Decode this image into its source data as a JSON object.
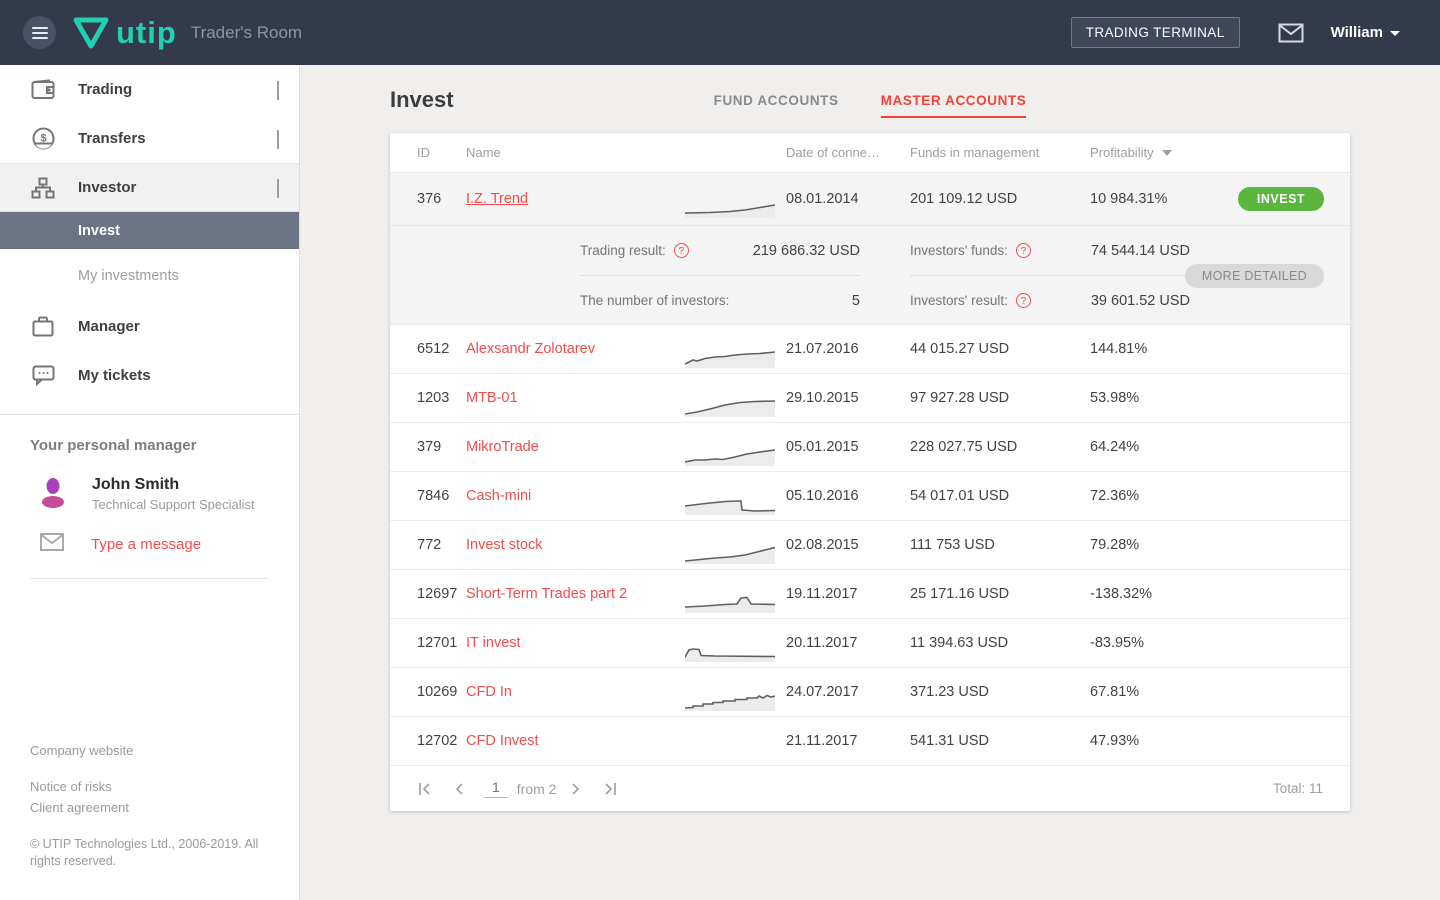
{
  "colors": {
    "brand_teal": "#21d0b2",
    "topbar_bg": "#323a4c",
    "accent_red": "#f44b4b",
    "tab_active_red": "#f44336",
    "invest_green": "#5cb53c",
    "selected_slate": "#6b7385"
  },
  "topbar": {
    "brand": "utip",
    "subtitle": "Trader's Room",
    "terminal_button": "TRADING TERMINAL",
    "username": "William"
  },
  "sidebar": {
    "items": [
      {
        "key": "trading",
        "label": "Trading",
        "chevron": "down"
      },
      {
        "key": "transfers",
        "label": "Transfers",
        "chevron": "down"
      },
      {
        "key": "investor",
        "label": "Investor",
        "chevron": "up"
      }
    ],
    "sub_items": [
      {
        "key": "invest",
        "label": "Invest",
        "selected": true
      },
      {
        "key": "my-investments",
        "label": "My investments",
        "selected": false
      }
    ],
    "items_bottom": [
      {
        "key": "manager",
        "label": "Manager"
      },
      {
        "key": "my-tickets",
        "label": "My tickets"
      }
    ],
    "personal_manager": {
      "heading": "Your personal manager",
      "name": "John Smith",
      "role": "Technical Support Specialist",
      "message_link": "Type a message"
    },
    "footer_links": [
      "Company website",
      "Notice of risks",
      "Client agreement"
    ],
    "copyright": "© UTIP Technologies Ltd., 2006-2019. All rights reserved."
  },
  "main": {
    "title": "Invest",
    "tabs": [
      {
        "label": "FUND ACCOUNTS",
        "active": false
      },
      {
        "label": "MASTER ACCOUNTS",
        "active": true
      }
    ],
    "table": {
      "columns": {
        "id": "ID",
        "name": "Name",
        "date": "Date of conne…",
        "funds": "Funds in management",
        "profit": "Profitability"
      },
      "invest_button": "INVEST",
      "more_detailed_button": "MORE DETAILED",
      "rows": [
        {
          "id": "376",
          "name": "I.Z. Trend",
          "date": "08.01.2014",
          "funds": "201 109.12 USD",
          "profit": "10 984.31%",
          "expanded": true,
          "underline": true,
          "spark": [
            [
              0,
              21
            ],
            [
              25,
              20.5
            ],
            [
              45,
              19.5
            ],
            [
              60,
              18
            ],
            [
              75,
              15.5
            ],
            [
              90,
              13
            ]
          ]
        },
        {
          "id": "6512",
          "name": "Alexsandr Zolotarev",
          "date": "21.07.2016",
          "funds": "44 015.27 USD",
          "profit": "144.81%",
          "spark": [
            [
              0,
              22
            ],
            [
              8,
              18
            ],
            [
              12,
              19
            ],
            [
              20,
              16.5
            ],
            [
              30,
              15
            ],
            [
              40,
              14.5
            ],
            [
              50,
              13
            ],
            [
              62,
              12
            ],
            [
              75,
              11.5
            ],
            [
              90,
              10
            ]
          ]
        },
        {
          "id": "1203",
          "name": "MTB-01",
          "date": "29.10.2015",
          "funds": "97 927.28 USD",
          "profit": "53.98%",
          "spark": [
            [
              0,
              23
            ],
            [
              12,
              21
            ],
            [
              25,
              18
            ],
            [
              40,
              14
            ],
            [
              55,
              11.5
            ],
            [
              70,
              10.5
            ],
            [
              90,
              10
            ]
          ]
        },
        {
          "id": "379",
          "name": "MikroTrade",
          "date": "05.01.2015",
          "funds": "228 027.75 USD",
          "profit": "64.24%",
          "spark": [
            [
              0,
              22
            ],
            [
              10,
              20
            ],
            [
              20,
              20
            ],
            [
              30,
              19
            ],
            [
              38,
              19.5
            ],
            [
              50,
              17
            ],
            [
              62,
              14
            ],
            [
              75,
              12
            ],
            [
              90,
              10
            ]
          ]
        },
        {
          "id": "7846",
          "name": "Cash-mini",
          "date": "05.10.2016",
          "funds": "54 017.01 USD",
          "profit": "72.36%",
          "spark": [
            [
              0,
              17
            ],
            [
              12,
              15.5
            ],
            [
              25,
              14
            ],
            [
              40,
              12.5
            ],
            [
              52,
              12
            ],
            [
              56,
              12
            ],
            [
              57,
              21
            ],
            [
              70,
              22
            ],
            [
              90,
              21.5
            ]
          ]
        },
        {
          "id": "772",
          "name": "Invest stock",
          "date": "02.08.2015",
          "funds": "111 753 USD",
          "profit": "79.28%",
          "spark": [
            [
              0,
              23
            ],
            [
              15,
              21.5
            ],
            [
              30,
              20
            ],
            [
              45,
              19
            ],
            [
              60,
              17
            ],
            [
              72,
              14
            ],
            [
              82,
              11.5
            ],
            [
              90,
              9.5
            ]
          ]
        },
        {
          "id": "12697",
          "name": "Short-Term Trades part 2",
          "date": "19.11.2017",
          "funds": "25 171.16 USD",
          "profit": "-138.32%",
          "spark": [
            [
              0,
              20
            ],
            [
              20,
              19
            ],
            [
              40,
              17.5
            ],
            [
              52,
              17
            ],
            [
              56,
              11
            ],
            [
              62,
              10.5
            ],
            [
              66,
              17
            ],
            [
              90,
              17.5
            ]
          ]
        },
        {
          "id": "12701",
          "name": "IT invest",
          "date": "20.11.2017",
          "funds": "11 394.63 USD",
          "profit": "-83.95%",
          "spark": [
            [
              0,
              21
            ],
            [
              4,
              14
            ],
            [
              8,
              13
            ],
            [
              14,
              13.5
            ],
            [
              16,
              19.5
            ],
            [
              30,
              20
            ],
            [
              90,
              20.5
            ]
          ]
        },
        {
          "id": "10269",
          "name": "CFD In",
          "date": "24.07.2017",
          "funds": "371.23 USD",
          "profit": "67.81%",
          "spark": [
            [
              0,
              23
            ],
            [
              8,
              22.5
            ],
            [
              8,
              21
            ],
            [
              18,
              21
            ],
            [
              18,
              19
            ],
            [
              28,
              19
            ],
            [
              28,
              17.5
            ],
            [
              38,
              17.5
            ],
            [
              38,
              16
            ],
            [
              50,
              16
            ],
            [
              50,
              14.5
            ],
            [
              62,
              14.5
            ],
            [
              62,
              13
            ],
            [
              72,
              13
            ],
            [
              74,
              11
            ],
            [
              78,
              13
            ],
            [
              82,
              10.5
            ],
            [
              86,
              12
            ],
            [
              90,
              11
            ]
          ]
        },
        {
          "id": "12702",
          "name": "CFD Invest",
          "date": "21.11.2017",
          "funds": "541.31 USD",
          "profit": "47.93%",
          "spark": []
        }
      ],
      "expanded_detail": {
        "trading_result_label": "Trading result:",
        "trading_result_value": "219 686.32 USD",
        "num_investors_label": "The number of investors:",
        "num_investors_value": "5",
        "investors_funds_label": "Investors' funds:",
        "investors_funds_value": "74 544.14 USD",
        "investors_result_label": "Investors' result:",
        "investors_result_value": "39 601.52 USD",
        "qmark_glyph": "?"
      },
      "pagination": {
        "page": "1",
        "from_label": "from 2",
        "total_label": "Total: 11"
      }
    }
  }
}
